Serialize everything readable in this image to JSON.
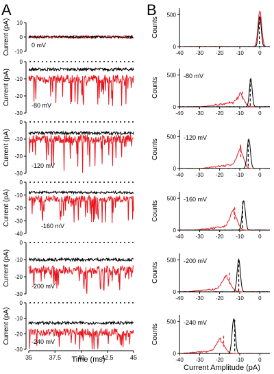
{
  "chart_data": [
    {
      "panel": "A",
      "type": "line",
      "xlabel": "Time (ms)",
      "ylabel": "Current (pA)",
      "xlim": [
        35,
        45
      ],
      "xticks": [
        "35",
        "37.5",
        "40",
        "42.5",
        "45"
      ],
      "series_colors": {
        "control": "#000000",
        "treated": "#e8141b"
      },
      "rows": [
        {
          "label": "0 mV",
          "ylim": [
            -10,
            10
          ],
          "yticks": [
            "10",
            "0",
            "-10"
          ],
          "zero_line": false,
          "black_mean": 0,
          "black_noise": 0.7,
          "red_mean": 0,
          "red_noise": 1.0,
          "red_spike_depth": 0
        },
        {
          "label": "-80 mV",
          "ylim": [
            -30,
            0
          ],
          "yticks": [
            "0",
            "-10",
            "-20",
            "-30"
          ],
          "zero_line": true,
          "black_mean": -4.5,
          "black_noise": 0.9,
          "red_mean": -10,
          "red_noise": 2.5,
          "red_spike_depth": 18
        },
        {
          "label": "-120 mV",
          "ylim": [
            -30,
            0
          ],
          "yticks": [
            "0",
            "-10",
            "-20",
            "-30"
          ],
          "zero_line": true,
          "black_mean": -6.5,
          "black_noise": 0.9,
          "red_mean": -10,
          "red_noise": 2.5,
          "red_spike_depth": 18
        },
        {
          "label": "-160 mV",
          "ylim": [
            -40,
            0
          ],
          "yticks": [
            "0",
            "-10",
            "-20",
            "-30",
            "-40"
          ],
          "zero_line": true,
          "black_mean": -8,
          "black_noise": 0.9,
          "red_mean": -13,
          "red_noise": 2.5,
          "red_spike_depth": 20
        },
        {
          "label": "-200 mV",
          "ylim": [
            -30,
            0
          ],
          "yticks": [
            "0",
            "-10",
            "-20",
            "-30"
          ],
          "zero_line": true,
          "black_mean": -10,
          "black_noise": 0.9,
          "red_mean": -16,
          "red_noise": 2.5,
          "red_spike_depth": 12
        },
        {
          "label": "-240 mV",
          "ylim": [
            -30,
            0
          ],
          "yticks": [
            "0",
            "-10",
            "-20",
            "-30"
          ],
          "zero_line": true,
          "black_mean": -13,
          "black_noise": 0.9,
          "red_mean": -19,
          "red_noise": 2.5,
          "red_spike_depth": 10
        }
      ]
    },
    {
      "panel": "B",
      "type": "area",
      "xlabel": "Current Amplitude (pA)",
      "ylabel": "Counts",
      "xlim": [
        -40,
        5
      ],
      "xticks": [
        "-40",
        "-30",
        "-20",
        "-10",
        "0"
      ],
      "rows": [
        {
          "label": "",
          "ylim": [
            0,
            500
          ],
          "yticks": [
            "500",
            "0"
          ],
          "black_peak": 0,
          "black_width": 0.7,
          "black_height": 470,
          "black_mean_marker": -0.2,
          "red_peak": 0,
          "red_width": 0.9,
          "red_height": 560,
          "red_mean_marker": -0.8,
          "red_tail_height": 0
        },
        {
          "label": "-80 mV",
          "ylim": [
            0,
            500
          ],
          "yticks": [
            "500",
            "0"
          ],
          "black_peak": -4.5,
          "black_width": 0.7,
          "black_height": 440,
          "black_mean_marker": -4.8,
          "red_peak": -9,
          "red_width": 1.5,
          "red_height": 150,
          "red_mean_marker": -8.5,
          "red_tail_height": 90
        },
        {
          "label": "-120 mV",
          "ylim": [
            0,
            500
          ],
          "yticks": [
            "500",
            "0"
          ],
          "black_peak": -5.5,
          "black_width": 0.8,
          "black_height": 460,
          "black_mean_marker": -5.8,
          "red_peak": -9.5,
          "red_width": 1.5,
          "red_height": 260,
          "red_mean_marker": -9.5,
          "red_tail_height": 80
        },
        {
          "label": "-160 mV",
          "ylim": [
            0,
            500
          ],
          "yticks": [
            "500",
            "0"
          ],
          "black_peak": -8,
          "black_width": 0.8,
          "black_height": 460,
          "black_mean_marker": -8.5,
          "red_peak": -13,
          "red_width": 1.8,
          "red_height": 250,
          "red_mean_marker": -12.5,
          "red_tail_height": 70
        },
        {
          "label": "-200 mV",
          "ylim": [
            0,
            500
          ],
          "yticks": [
            "500",
            "0"
          ],
          "black_peak": -10.5,
          "black_width": 0.8,
          "black_height": 510,
          "black_mean_marker": -10.5,
          "red_peak": -16.5,
          "red_width": 2.0,
          "red_height": 200,
          "red_mean_marker": -15,
          "red_tail_height": 60
        },
        {
          "label": "-240 mV",
          "ylim": [
            0,
            500
          ],
          "yticks": [
            "500",
            "0"
          ],
          "black_peak": -13,
          "black_width": 0.8,
          "black_height": 540,
          "black_mean_marker": -12.5,
          "red_peak": -19.5,
          "red_width": 2.0,
          "red_height": 180,
          "red_mean_marker": -18,
          "red_tail_height": 50
        }
      ]
    }
  ]
}
